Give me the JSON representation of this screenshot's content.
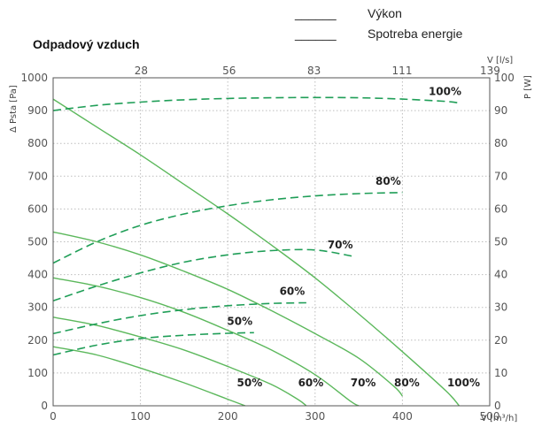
{
  "chart_data": {
    "type": "line",
    "title": "Odpadový vzduch",
    "legend": [
      {
        "name": "Výkon",
        "line": "______"
      },
      {
        "name": "Spotreba energie",
        "line": "______"
      }
    ],
    "legend_placement": "top-right",
    "grid": true,
    "x_axis": {
      "label": "V [m³/h]",
      "range": [
        0,
        500
      ],
      "ticks": [
        "0",
        "100",
        "200",
        "300",
        "400",
        "500"
      ]
    },
    "x_axis_top": {
      "label": "V [l/s]",
      "ticks": [
        "28",
        "56",
        "83",
        "111",
        "139"
      ]
    },
    "y_axis_left": {
      "label": "Δ Psta [Pa]",
      "range": [
        0,
        1000
      ],
      "ticks": [
        "0",
        "100",
        "200",
        "300",
        "400",
        "500",
        "600",
        "700",
        "800",
        "900",
        "1000"
      ]
    },
    "y_axis_right": {
      "label": "P [W]",
      "range": [
        0,
        100
      ],
      "ticks": [
        "0",
        "10",
        "20",
        "30",
        "40",
        "50",
        "60",
        "70",
        "80",
        "90",
        "100"
      ]
    },
    "pressure_series": [
      {
        "label": "100%",
        "x": [
          0,
          50,
          100,
          150,
          200,
          250,
          300,
          350,
          400,
          450,
          465
        ],
        "y": [
          935,
          850,
          765,
          675,
          585,
          490,
          390,
          280,
          165,
          45,
          0
        ]
      },
      {
        "label": "80%",
        "x": [
          0,
          50,
          100,
          150,
          200,
          250,
          300,
          350,
          390,
          400
        ],
        "y": [
          530,
          500,
          460,
          410,
          355,
          290,
          220,
          145,
          60,
          30
        ]
      },
      {
        "label": "70%",
        "x": [
          0,
          50,
          100,
          150,
          200,
          250,
          300,
          340,
          350
        ],
        "y": [
          390,
          365,
          330,
          285,
          230,
          170,
          95,
          15,
          0
        ]
      },
      {
        "label": "60%",
        "x": [
          0,
          50,
          100,
          150,
          200,
          250,
          280,
          290
        ],
        "y": [
          270,
          245,
          210,
          170,
          120,
          65,
          20,
          0
        ]
      },
      {
        "label": "50%",
        "x": [
          0,
          50,
          100,
          150,
          200,
          220
        ],
        "y": [
          180,
          155,
          115,
          70,
          20,
          0
        ]
      }
    ],
    "power_series": [
      {
        "label": "100%",
        "x": [
          0,
          50,
          100,
          150,
          200,
          250,
          300,
          350,
          400,
          450,
          465
        ],
        "y": [
          90,
          91.6,
          92.6,
          93.3,
          93.7,
          93.9,
          94,
          93.9,
          93.5,
          92.8,
          92.3
        ]
      },
      {
        "label": "80%",
        "x": [
          0,
          50,
          100,
          150,
          200,
          250,
          300,
          350,
          400
        ],
        "y": [
          43.5,
          50,
          55,
          58.5,
          61,
          62.8,
          64,
          64.7,
          65
        ]
      },
      {
        "label": "70%",
        "x": [
          0,
          50,
          100,
          150,
          200,
          250,
          300,
          345
        ],
        "y": [
          32,
          36.5,
          40.5,
          43.8,
          46,
          47.3,
          47.5,
          45.5
        ]
      },
      {
        "label": "60%",
        "x": [
          0,
          50,
          100,
          150,
          200,
          250,
          290
        ],
        "y": [
          22,
          25,
          27.5,
          29.3,
          30.5,
          31.2,
          31.4
        ]
      },
      {
        "label": "50%",
        "x": [
          0,
          50,
          100,
          150,
          200,
          230
        ],
        "y": [
          15.5,
          18.5,
          20.5,
          21.5,
          22.1,
          22.3
        ]
      }
    ]
  }
}
